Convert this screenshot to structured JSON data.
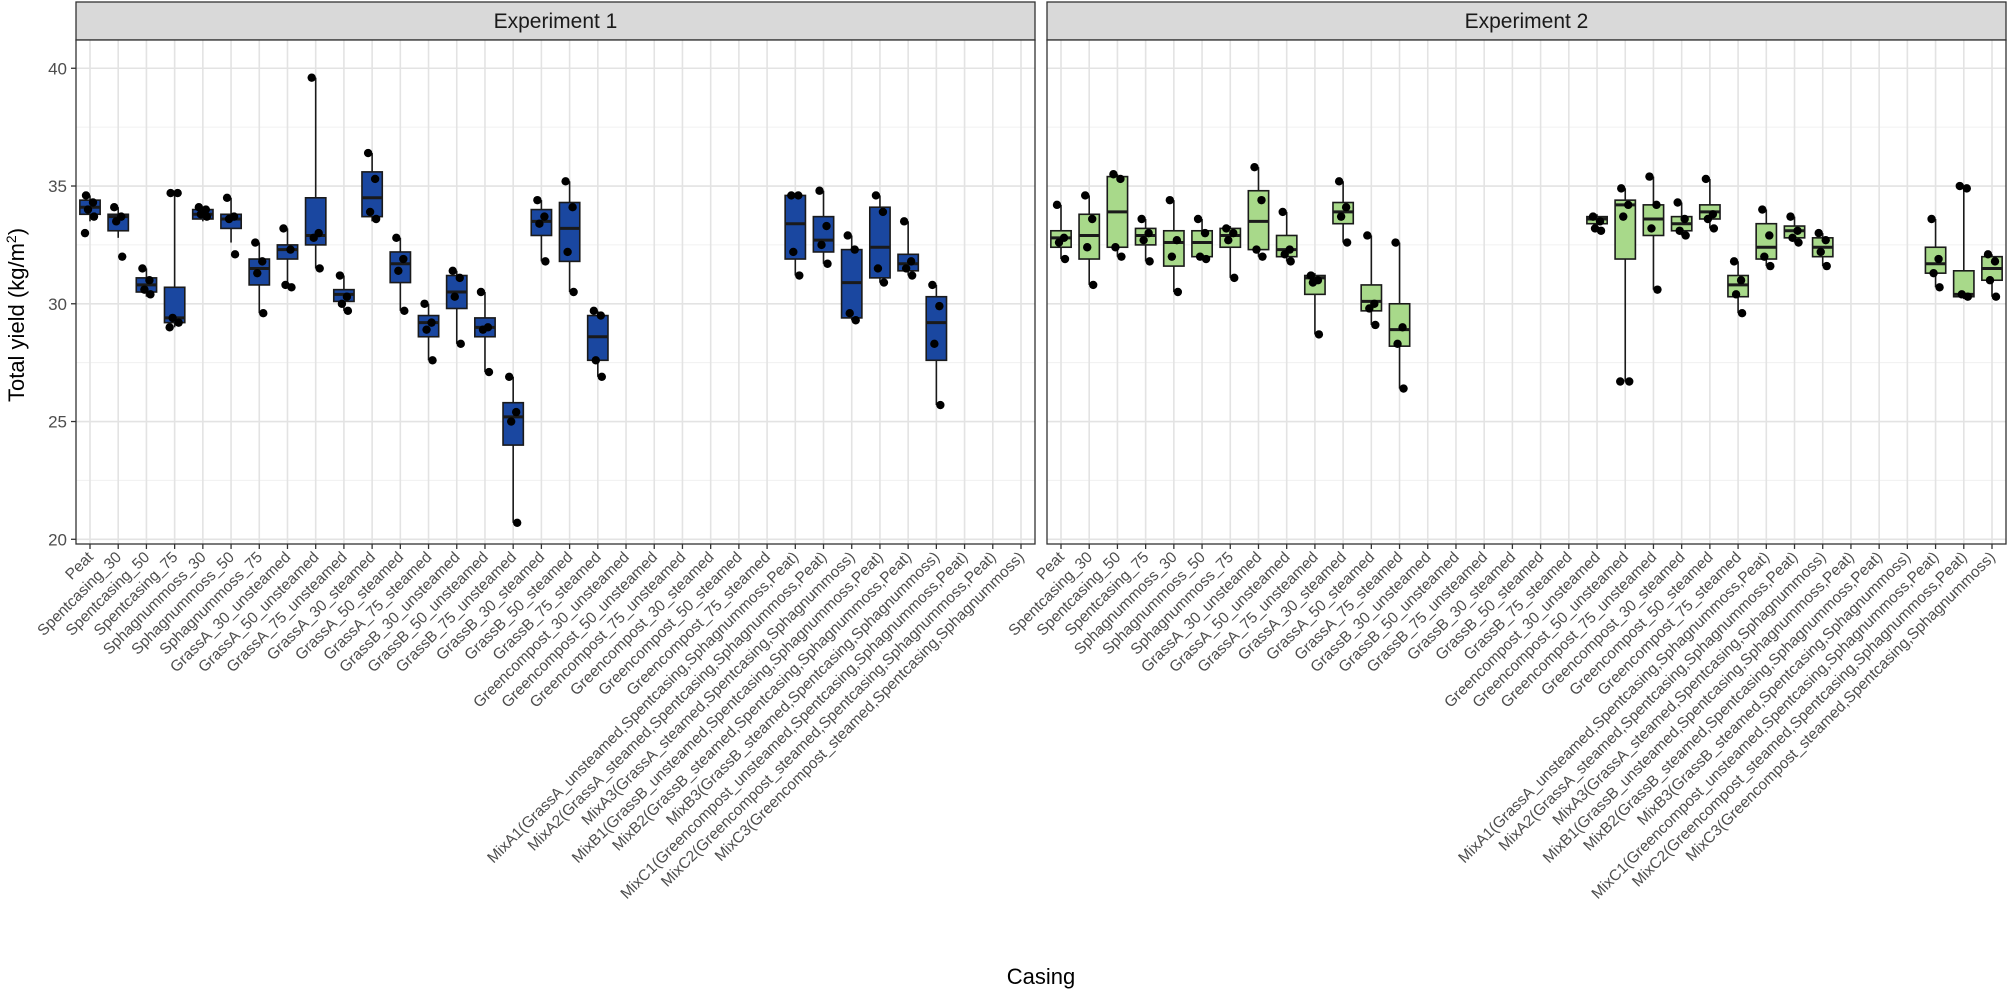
{
  "chart_data": {
    "type": "box",
    "xlabel": "Casing",
    "ylabel_main": "Total yield (kg/m",
    "ylabel_sup": "2",
    "ylabel_tail": ")",
    "ylim": [
      19.8,
      41.2
    ],
    "yticks": [
      20,
      25,
      30,
      35,
      40
    ],
    "grid": true,
    "categories": [
      "Peat",
      "Spentcasing_30",
      "Spentcasing_50",
      "Spentcasing_75",
      "Sphagnummoss_30",
      "Sphagnummoss_50",
      "Sphagnummoss_75",
      "GrassA_30_unsteamed",
      "GrassA_50_unsteamed",
      "GrassA_75_unsteamed",
      "GrassA_30_steamed",
      "GrassA_50_steamed",
      "GrassA_75_steamed",
      "GrassB_30_unsteamed",
      "GrassB_50_unsteamed",
      "GrassB_75_unsteamed",
      "GrassB_30_steamed",
      "GrassB_50_steamed",
      "GrassB_75_steamed",
      "Greencompost_30_unsteamed",
      "Greencompost_50_unsteamed",
      "Greencompost_75_unsteamed",
      "Greencompost_30_steamed",
      "Greencompost_50_steamed",
      "Greencompost_75_steamed",
      "MixA1(GrassA_unsteamed,Spentcasing,Sphagnummoss,Peat)",
      "MixA2(GrassA_steamed,Spentcasing,Sphagnummoss,Peat)",
      "MixA3(GrassA_steamed,Spentcasing,Sphagnummoss)",
      "MixB1(GrassB_unsteamed,Spentcasing,Sphagnummoss,Peat)",
      "MixB2(GrassB_steamed,Spentcasing,Sphagnummoss,Peat)",
      "MixB3(GrassB_steamed,Spentcasing,Sphagnummoss)",
      "MixC1(Greencompost_unsteamed,Spentcasing,Sphagnummoss,Peat)",
      "MixC2(Greencompost_steamed,Spentcasing,Sphagnummoss,Peat)",
      "MixC3(Greencompost_steamed,Spentcasing,Sphagnummoss)"
    ],
    "panels": [
      {
        "title": "Experiment 1",
        "fill": "#1a47a0",
        "boxes": [
          {
            "i": 0,
            "q1": 33.8,
            "med": 34.1,
            "q3": 34.4,
            "lo": 33.5,
            "hi": 34.6,
            "pts": [
              34.6,
              34.3,
              34.0,
              33.7,
              33.0
            ]
          },
          {
            "i": 1,
            "q1": 33.1,
            "med": 33.7,
            "q3": 33.8,
            "lo": 32.8,
            "hi": 34.1,
            "pts": [
              34.1,
              33.7,
              33.5,
              32.0
            ]
          },
          {
            "i": 2,
            "q1": 30.5,
            "med": 30.8,
            "q3": 31.1,
            "lo": 30.3,
            "hi": 31.5,
            "pts": [
              31.5,
              31.0,
              30.6,
              30.4
            ]
          },
          {
            "i": 3,
            "q1": 29.2,
            "med": 29.4,
            "q3": 30.7,
            "lo": 29.0,
            "hi": 34.7,
            "pts": [
              34.7,
              34.7,
              29.4,
              29.2,
              29.0
            ]
          },
          {
            "i": 4,
            "q1": 33.6,
            "med": 33.8,
            "q3": 34.0,
            "lo": 33.5,
            "hi": 34.1,
            "pts": [
              34.1,
              34.0,
              33.8,
              33.7
            ]
          },
          {
            "i": 5,
            "q1": 33.2,
            "med": 33.6,
            "q3": 33.8,
            "lo": 32.6,
            "hi": 34.5,
            "pts": [
              34.5,
              33.7,
              33.6,
              32.1
            ]
          },
          {
            "i": 6,
            "q1": 30.8,
            "med": 31.5,
            "q3": 31.9,
            "lo": 29.6,
            "hi": 32.6,
            "pts": [
              32.6,
              31.8,
              31.3,
              29.6
            ]
          },
          {
            "i": 7,
            "q1": 31.9,
            "med": 32.3,
            "q3": 32.5,
            "lo": 30.8,
            "hi": 33.2,
            "pts": [
              33.2,
              32.3,
              30.8,
              30.7
            ]
          },
          {
            "i": 8,
            "q1": 32.5,
            "med": 32.9,
            "q3": 34.5,
            "lo": 31.5,
            "hi": 39.6,
            "pts": [
              39.6,
              33.0,
              32.8,
              31.5
            ]
          },
          {
            "i": 9,
            "q1": 30.1,
            "med": 30.4,
            "q3": 30.6,
            "lo": 29.7,
            "hi": 31.2,
            "pts": [
              31.2,
              30.3,
              30.0,
              29.7
            ]
          },
          {
            "i": 10,
            "q1": 33.7,
            "med": 34.5,
            "q3": 35.6,
            "lo": 33.5,
            "hi": 36.4,
            "pts": [
              36.4,
              35.3,
              33.9,
              33.6
            ]
          },
          {
            "i": 11,
            "q1": 30.9,
            "med": 31.7,
            "q3": 32.2,
            "lo": 29.7,
            "hi": 32.8,
            "pts": [
              32.8,
              31.9,
              31.4,
              29.7
            ]
          },
          {
            "i": 12,
            "q1": 28.6,
            "med": 29.2,
            "q3": 29.5,
            "lo": 27.6,
            "hi": 30.0,
            "pts": [
              30.0,
              29.2,
              28.9,
              27.6
            ]
          },
          {
            "i": 13,
            "q1": 29.8,
            "med": 30.5,
            "q3": 31.2,
            "lo": 28.3,
            "hi": 31.4,
            "pts": [
              31.4,
              31.1,
              30.3,
              28.3
            ]
          },
          {
            "i": 14,
            "q1": 28.6,
            "med": 29.0,
            "q3": 29.4,
            "lo": 27.1,
            "hi": 30.5,
            "pts": [
              30.5,
              29.0,
              28.9,
              27.1
            ]
          },
          {
            "i": 15,
            "q1": 24.0,
            "med": 25.2,
            "q3": 25.8,
            "lo": 20.7,
            "hi": 26.9,
            "pts": [
              26.9,
              25.4,
              25.0,
              20.7
            ]
          },
          {
            "i": 16,
            "q1": 32.9,
            "med": 33.5,
            "q3": 34.0,
            "lo": 31.8,
            "hi": 34.4,
            "pts": [
              34.4,
              33.7,
              33.4,
              31.8
            ]
          },
          {
            "i": 17,
            "q1": 31.8,
            "med": 33.2,
            "q3": 34.3,
            "lo": 30.5,
            "hi": 35.2,
            "pts": [
              35.2,
              34.1,
              32.2,
              30.5
            ]
          },
          {
            "i": 18,
            "q1": 27.6,
            "med": 28.6,
            "q3": 29.5,
            "lo": 26.9,
            "hi": 29.7,
            "pts": [
              29.7,
              29.5,
              27.6,
              26.9
            ]
          },
          {
            "i": 25,
            "q1": 31.9,
            "med": 33.4,
            "q3": 34.6,
            "lo": 31.2,
            "hi": 34.7,
            "pts": [
              34.6,
              34.6,
              32.2,
              31.2
            ]
          },
          {
            "i": 26,
            "q1": 32.2,
            "med": 32.7,
            "q3": 33.7,
            "lo": 31.7,
            "hi": 34.8,
            "pts": [
              34.8,
              33.3,
              32.5,
              31.7
            ]
          },
          {
            "i": 27,
            "q1": 29.4,
            "med": 30.9,
            "q3": 32.3,
            "lo": 29.3,
            "hi": 32.9,
            "pts": [
              32.9,
              32.3,
              29.6,
              29.3
            ]
          },
          {
            "i": 28,
            "q1": 31.1,
            "med": 32.4,
            "q3": 34.1,
            "lo": 30.9,
            "hi": 34.6,
            "pts": [
              34.6,
              33.9,
              31.5,
              30.9
            ]
          },
          {
            "i": 29,
            "q1": 31.4,
            "med": 31.7,
            "q3": 32.1,
            "lo": 31.2,
            "hi": 33.5,
            "pts": [
              33.5,
              31.8,
              31.5,
              31.2
            ]
          },
          {
            "i": 30,
            "q1": 27.6,
            "med": 29.2,
            "q3": 30.3,
            "lo": 25.7,
            "hi": 30.8,
            "pts": [
              30.8,
              29.9,
              28.3,
              25.7
            ]
          }
        ]
      },
      {
        "title": "Experiment 2",
        "fill": "#a8d98a",
        "boxes": [
          {
            "i": 0,
            "q1": 32.4,
            "med": 32.8,
            "q3": 33.1,
            "lo": 31.9,
            "hi": 34.2,
            "pts": [
              34.2,
              32.8,
              32.6,
              31.9
            ]
          },
          {
            "i": 1,
            "q1": 31.9,
            "med": 32.9,
            "q3": 33.8,
            "lo": 30.8,
            "hi": 34.6,
            "pts": [
              34.6,
              33.6,
              32.4,
              30.8
            ]
          },
          {
            "i": 2,
            "q1": 32.4,
            "med": 33.9,
            "q3": 35.4,
            "lo": 32.0,
            "hi": 35.5,
            "pts": [
              35.5,
              35.3,
              32.4,
              32.0
            ]
          },
          {
            "i": 3,
            "q1": 32.5,
            "med": 32.9,
            "q3": 33.2,
            "lo": 31.8,
            "hi": 33.6,
            "pts": [
              33.6,
              33.0,
              32.7,
              31.8
            ]
          },
          {
            "i": 4,
            "q1": 31.6,
            "med": 32.6,
            "q3": 33.1,
            "lo": 30.5,
            "hi": 34.4,
            "pts": [
              34.4,
              32.7,
              32.0,
              30.5
            ]
          },
          {
            "i": 5,
            "q1": 32.0,
            "med": 32.6,
            "q3": 33.1,
            "lo": 31.9,
            "hi": 33.6,
            "pts": [
              33.6,
              33.0,
              32.0,
              31.9
            ]
          },
          {
            "i": 6,
            "q1": 32.4,
            "med": 32.9,
            "q3": 33.2,
            "lo": 31.1,
            "hi": 33.3,
            "pts": [
              33.2,
              33.0,
              32.7,
              31.1
            ]
          },
          {
            "i": 7,
            "q1": 32.3,
            "med": 33.5,
            "q3": 34.8,
            "lo": 32.0,
            "hi": 35.8,
            "pts": [
              35.8,
              34.4,
              32.3,
              32.0
            ]
          },
          {
            "i": 8,
            "q1": 32.0,
            "med": 32.3,
            "q3": 32.9,
            "lo": 31.8,
            "hi": 33.9,
            "pts": [
              33.9,
              32.3,
              32.1,
              31.8
            ]
          },
          {
            "i": 9,
            "q1": 30.4,
            "med": 31.1,
            "q3": 31.2,
            "lo": 28.7,
            "hi": 31.3,
            "pts": [
              31.2,
              31.0,
              30.9,
              28.7
            ]
          },
          {
            "i": 10,
            "q1": 33.4,
            "med": 33.9,
            "q3": 34.3,
            "lo": 32.6,
            "hi": 35.2,
            "pts": [
              35.2,
              34.1,
              33.7,
              32.6
            ]
          },
          {
            "i": 11,
            "q1": 29.7,
            "med": 30.1,
            "q3": 30.8,
            "lo": 29.1,
            "hi": 32.9,
            "pts": [
              32.9,
              30.0,
              29.8,
              29.1
            ]
          },
          {
            "i": 12,
            "q1": 28.2,
            "med": 28.9,
            "q3": 30.0,
            "lo": 26.4,
            "hi": 32.6,
            "pts": [
              32.6,
              29.0,
              28.3,
              26.4
            ]
          },
          {
            "i": 19,
            "q1": 33.4,
            "med": 33.6,
            "q3": 33.7,
            "lo": 33.1,
            "hi": 33.8,
            "pts": [
              33.7,
              33.5,
              33.2,
              33.1
            ]
          },
          {
            "i": 20,
            "q1": 31.9,
            "med": 34.2,
            "q3": 34.4,
            "lo": 26.7,
            "hi": 34.9,
            "pts": [
              34.9,
              34.2,
              33.7,
              26.7,
              26.7
            ]
          },
          {
            "i": 21,
            "q1": 32.9,
            "med": 33.6,
            "q3": 34.2,
            "lo": 30.6,
            "hi": 35.4,
            "pts": [
              35.4,
              34.2,
              33.2,
              30.6
            ]
          },
          {
            "i": 22,
            "q1": 33.1,
            "med": 33.4,
            "q3": 33.7,
            "lo": 32.9,
            "hi": 34.3,
            "pts": [
              34.3,
              33.6,
              33.1,
              32.9
            ]
          },
          {
            "i": 23,
            "q1": 33.6,
            "med": 33.9,
            "q3": 34.2,
            "lo": 33.2,
            "hi": 35.3,
            "pts": [
              35.3,
              33.8,
              33.6,
              33.2
            ]
          },
          {
            "i": 24,
            "q1": 30.3,
            "med": 30.8,
            "q3": 31.2,
            "lo": 29.6,
            "hi": 31.8,
            "pts": [
              31.8,
              31.0,
              30.4,
              29.6
            ]
          },
          {
            "i": 25,
            "q1": 31.9,
            "med": 32.4,
            "q3": 33.4,
            "lo": 31.6,
            "hi": 34.0,
            "pts": [
              34.0,
              32.9,
              32.0,
              31.6
            ]
          },
          {
            "i": 26,
            "q1": 32.8,
            "med": 33.1,
            "q3": 33.3,
            "lo": 32.6,
            "hi": 33.7,
            "pts": [
              33.7,
              33.1,
              32.8,
              32.6
            ]
          },
          {
            "i": 27,
            "q1": 32.0,
            "med": 32.4,
            "q3": 32.8,
            "lo": 31.6,
            "hi": 33.0,
            "pts": [
              33.0,
              32.7,
              32.2,
              31.6
            ]
          },
          {
            "i": 31,
            "q1": 31.3,
            "med": 31.7,
            "q3": 32.4,
            "lo": 30.7,
            "hi": 33.6,
            "pts": [
              33.6,
              31.9,
              31.3,
              30.7
            ]
          },
          {
            "i": 32,
            "q1": 30.3,
            "med": 30.4,
            "q3": 31.4,
            "lo": 30.2,
            "hi": 35.0,
            "pts": [
              35.0,
              34.9,
              30.4,
              30.3
            ]
          },
          {
            "i": 33,
            "q1": 31.0,
            "med": 31.5,
            "q3": 32.0,
            "lo": 30.3,
            "hi": 32.1,
            "pts": [
              32.1,
              31.8,
              31.0,
              30.3
            ]
          }
        ]
      }
    ]
  }
}
